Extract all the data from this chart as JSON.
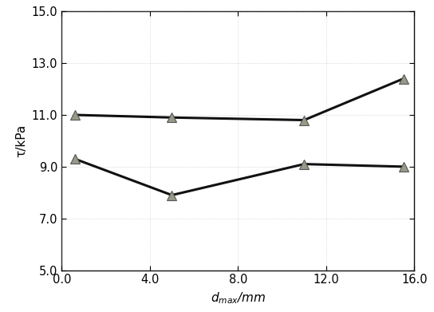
{
  "series1_x": [
    0.6,
    5.0,
    11.0,
    15.5
  ],
  "series1_y": [
    11.0,
    10.9,
    10.8,
    12.4
  ],
  "series2_x": [
    0.6,
    5.0,
    11.0,
    15.5
  ],
  "series2_y": [
    9.3,
    7.9,
    9.1,
    9.0
  ],
  "xlim": [
    0.0,
    16.0
  ],
  "ylim": [
    5.0,
    15.0
  ],
  "xticks": [
    0.0,
    4.0,
    8.0,
    12.0,
    16.0
  ],
  "yticks": [
    5.0,
    7.0,
    9.0,
    11.0,
    13.0,
    15.0
  ],
  "xlabel": "d$_{max}$/mm",
  "ylabel": "τ/kPa",
  "line_color": "#111111",
  "marker_facecolor": "#999988",
  "marker_edgecolor": "#555555",
  "linewidth": 2.2,
  "markersize": 8,
  "tick_fontsize": 10.5,
  "label_fontsize": 11,
  "background_color": "#ffffff"
}
